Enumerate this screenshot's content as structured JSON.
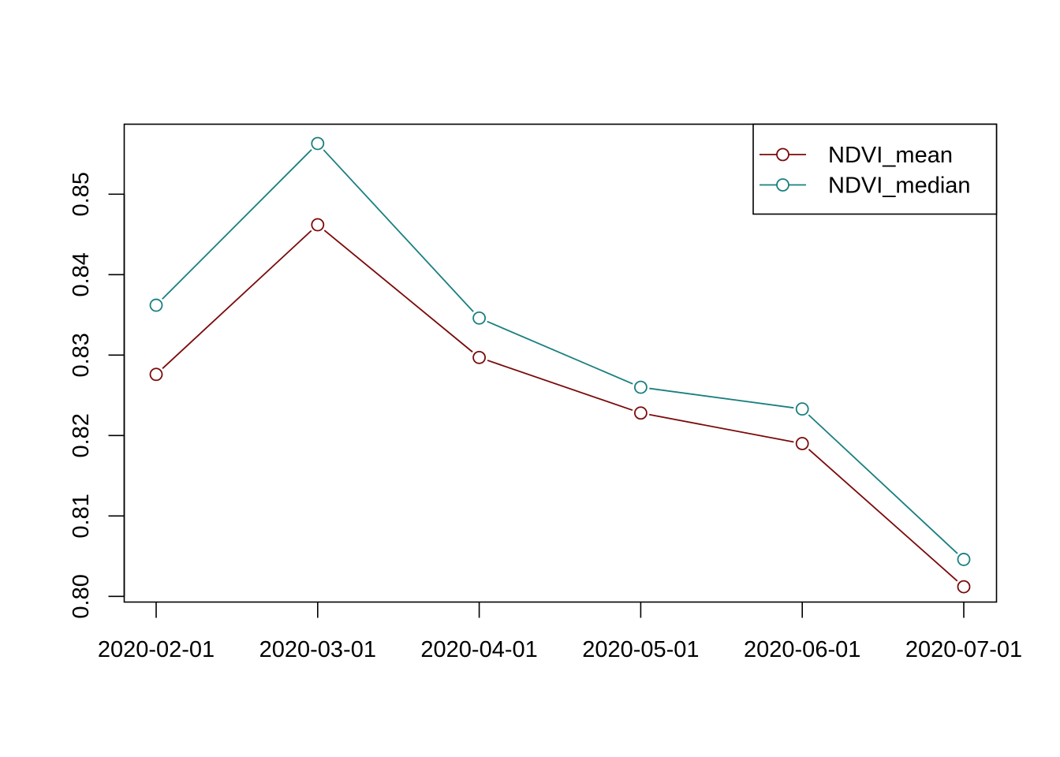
{
  "chart_data": {
    "type": "line",
    "title": "",
    "xlabel": "",
    "ylabel": "",
    "x": [
      "2020-02-01",
      "2020-03-01",
      "2020-04-01",
      "2020-05-01",
      "2020-06-01",
      "2020-07-01"
    ],
    "series": [
      {
        "name": "NDVI_mean",
        "color": "#7a0a0a",
        "values": [
          0.8276,
          0.8462,
          0.8297,
          0.8228,
          0.819,
          0.8012
        ]
      },
      {
        "name": "NDVI_median",
        "color": "#1a7f7f",
        "values": [
          0.8362,
          0.8563,
          0.8346,
          0.826,
          0.8233,
          0.8046
        ]
      }
    ],
    "y_ticks": [
      "0.80",
      "0.81",
      "0.82",
      "0.83",
      "0.84",
      "0.85"
    ],
    "ylim": [
      0.7993,
      0.8587
    ],
    "marker": "open-circle",
    "legend": {
      "position": "top-right",
      "entries": [
        "NDVI_mean",
        "NDVI_median"
      ]
    },
    "grid": false
  }
}
